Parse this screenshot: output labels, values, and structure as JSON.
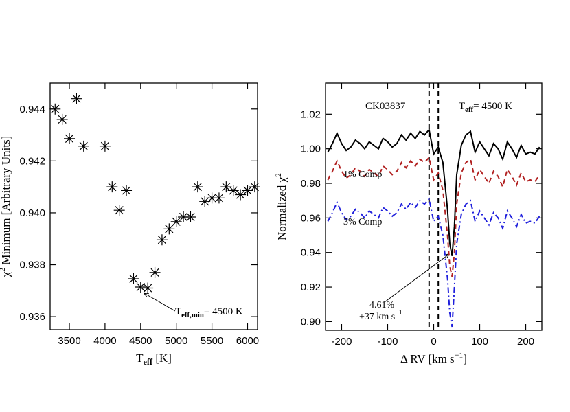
{
  "chart_data": [
    {
      "type": "scatter",
      "xlabel": {
        "text": "T",
        "sub": "eff",
        "rest": " [K]"
      },
      "ylabel": {
        "text": "χ",
        "sup": "2",
        "rest": " Minimum [Arbitrary Units]"
      },
      "x": [
        3300,
        3400,
        3500,
        3600,
        3700,
        4000,
        4100,
        4200,
        4300,
        4400,
        4500,
        4600,
        4700,
        4800,
        4900,
        5000,
        5100,
        5200,
        5300,
        5400,
        5500,
        5600,
        5700,
        5800,
        5900,
        6000,
        6100
      ],
      "values": [
        0.944,
        0.9436,
        0.94286,
        0.9444,
        0.94257,
        0.94257,
        0.941,
        0.9401,
        0.94086,
        0.93746,
        0.93714,
        0.9371,
        0.9377,
        0.93896,
        0.93938,
        0.93966,
        0.93984,
        0.93984,
        0.941,
        0.94044,
        0.94057,
        0.94057,
        0.941,
        0.94086,
        0.9407,
        0.94086,
        0.941
      ],
      "color": "#000000",
      "marker": "asterisk",
      "xlim": [
        3230,
        6140
      ],
      "ylim": [
        0.9355,
        0.945
      ],
      "xticks": [
        3500,
        4000,
        4500,
        5000,
        5500,
        6000
      ],
      "yticks": [
        0.936,
        0.938,
        {
          "value": 0.94,
          "label": "0.940"
        },
        0.942,
        0.944
      ],
      "annotations": [
        {
          "text": "T",
          "sub": "eff,min",
          "rest": "= 4500 K"
        }
      ]
    },
    {
      "type": "line",
      "xlabel": {
        "text": "Δ RV [km s",
        "sup": "−1",
        "rest": "]"
      },
      "ylabel": {
        "text": "Normalized χ",
        "sup": "2"
      },
      "x": [
        -230,
        -220,
        -210,
        -200,
        -190,
        -180,
        -170,
        -160,
        -150,
        -140,
        -130,
        -120,
        -110,
        -100,
        -90,
        -80,
        -70,
        -60,
        -50,
        -40,
        -30,
        -20,
        -10,
        0,
        10,
        20,
        30,
        35,
        40,
        45,
        50,
        60,
        70,
        80,
        90,
        100,
        110,
        120,
        130,
        140,
        150,
        160,
        170,
        180,
        190,
        200,
        210,
        220,
        230
      ],
      "series": [
        {
          "color": "#000000",
          "dash": "solid",
          "values": [
            0.998,
            1.003,
            1.009,
            1.003,
            0.999,
            1.001,
            1.005,
            1.003,
            1.0,
            1.004,
            1.002,
            1.0,
            1.006,
            1.004,
            1.001,
            1.003,
            1.008,
            1.005,
            1.009,
            1.006,
            1.01,
            1.008,
            1.011,
            0.997,
            1.001,
            0.992,
            0.965,
            0.945,
            0.938,
            0.955,
            0.985,
            1.002,
            1.008,
            1.01,
            0.998,
            1.004,
            1.0,
            0.996,
            1.003,
            1.0,
            0.994,
            1.004,
            1.0,
            0.995,
            1.002,
            0.997,
            0.998,
            0.997,
            1.001
          ]
        },
        {
          "name": "1% Comp",
          "color": "#b22222",
          "dash": "dashed",
          "values": [
            0.982,
            0.987,
            0.993,
            0.987,
            0.983,
            0.985,
            0.989,
            0.987,
            0.984,
            0.988,
            0.986,
            0.984,
            0.99,
            0.988,
            0.985,
            0.987,
            0.992,
            0.989,
            0.993,
            0.99,
            0.994,
            0.992,
            0.995,
            0.982,
            0.986,
            0.976,
            0.95,
            0.932,
            0.926,
            0.94,
            0.968,
            0.986,
            0.992,
            0.994,
            0.982,
            0.988,
            0.984,
            0.98,
            0.987,
            0.984,
            0.978,
            0.988,
            0.984,
            0.979,
            0.986,
            0.981,
            0.982,
            0.981,
            0.985
          ]
        },
        {
          "name": "3% Comp",
          "color": "#1f1fdc",
          "dash": "dashdot",
          "values": [
            0.958,
            0.963,
            0.969,
            0.963,
            0.959,
            0.961,
            0.965,
            0.963,
            0.96,
            0.964,
            0.962,
            0.96,
            0.966,
            0.964,
            0.961,
            0.963,
            0.968,
            0.965,
            0.969,
            0.966,
            0.97,
            0.968,
            0.971,
            0.958,
            0.961,
            0.95,
            0.925,
            0.905,
            0.897,
            0.92,
            0.945,
            0.962,
            0.968,
            0.97,
            0.958,
            0.964,
            0.96,
            0.956,
            0.963,
            0.96,
            0.954,
            0.964,
            0.96,
            0.955,
            0.962,
            0.957,
            0.958,
            0.957,
            0.961
          ]
        }
      ],
      "vlines": [
        -10,
        10
      ],
      "xlim": [
        -235,
        235
      ],
      "ylim": [
        0.895,
        1.038
      ],
      "xticks": [
        -200,
        -100,
        0,
        100,
        200
      ],
      "yticks": [
        {
          "value": 0.9,
          "label": "0.90"
        },
        0.92,
        0.94,
        0.96,
        0.98,
        {
          "value": 1.0,
          "label": "1.00"
        },
        1.02
      ],
      "annotations": [
        "CK03837",
        {
          "text": "T",
          "sub": "eff",
          "rest": "= 4500 K"
        },
        "4.61%",
        {
          "text": "+37 km s",
          "sup": "−1"
        }
      ]
    }
  ]
}
